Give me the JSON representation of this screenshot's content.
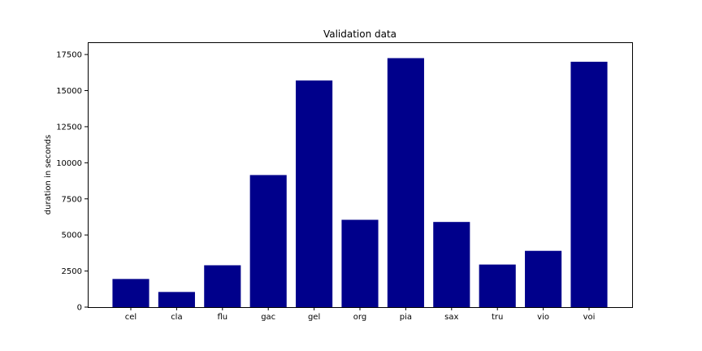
{
  "chart_data": {
    "type": "bar",
    "title": "Validation data",
    "xlabel": "",
    "ylabel": "duration in seconds",
    "categories": [
      "cel",
      "cla",
      "flu",
      "gac",
      "gel",
      "org",
      "pia",
      "sax",
      "tru",
      "vio",
      "voi"
    ],
    "values": [
      1950,
      1050,
      2900,
      9150,
      15700,
      6050,
      17250,
      5900,
      2950,
      3900,
      17000
    ],
    "ylim": [
      0,
      18350
    ],
    "yticks": [
      0,
      2500,
      5000,
      7500,
      10000,
      12500,
      15000,
      17500
    ],
    "ytick_labels": [
      "0",
      "2500",
      "5000",
      "7500",
      "10000",
      "12500",
      "15000",
      "17500"
    ],
    "bar_color": "#00008b",
    "grid": false,
    "legend": "none"
  }
}
